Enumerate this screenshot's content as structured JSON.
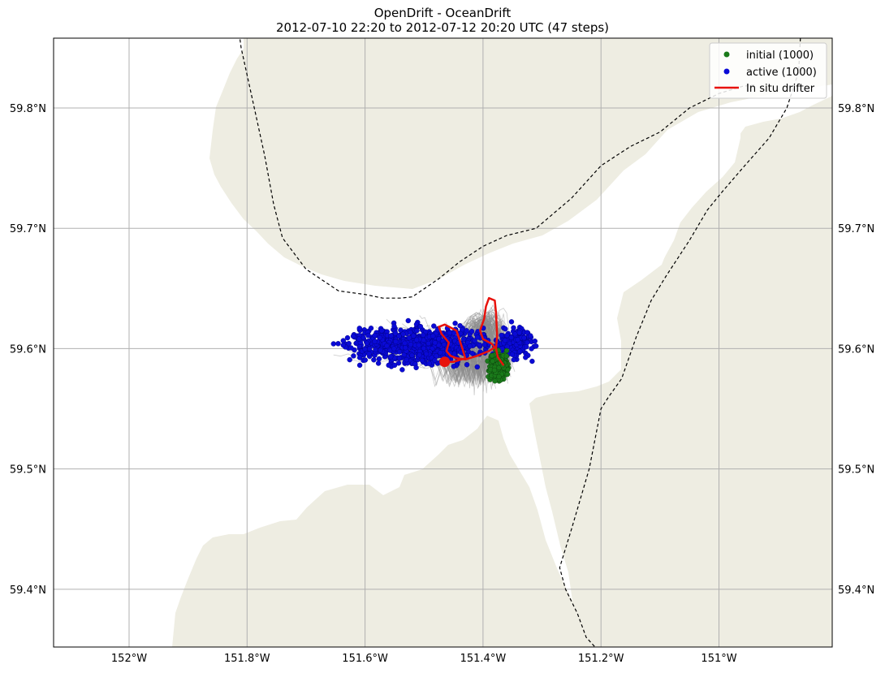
{
  "chart_data": {
    "type": "scatter",
    "title": "OpenDrift - OceanDrift",
    "subtitle": "2012-07-10 22:20 to 2012-07-12 20:20 UTC (47 steps)",
    "xlim": [
      -152.128,
      -150.808
    ],
    "ylim": [
      59.352,
      59.858
    ],
    "x_ticks": [
      {
        "value": -152.0,
        "label": "152°W"
      },
      {
        "value": -151.8,
        "label": "151.8°W"
      },
      {
        "value": -151.6,
        "label": "151.6°W"
      },
      {
        "value": -151.4,
        "label": "151.4°W"
      },
      {
        "value": -151.2,
        "label": "151.2°W"
      },
      {
        "value": -151.0,
        "label": "151°W"
      }
    ],
    "y_ticks": [
      {
        "value": 59.4,
        "label": "59.4°N"
      },
      {
        "value": 59.5,
        "label": "59.5°N"
      },
      {
        "value": 59.6,
        "label": "59.6°N"
      },
      {
        "value": 59.7,
        "label": "59.7°N"
      },
      {
        "value": 59.8,
        "label": "59.8°N"
      }
    ],
    "grid": true,
    "legend_position": "top-right",
    "legend": [
      {
        "label": "initial (1000)",
        "marker": "dot",
        "color": "#1a7a1a"
      },
      {
        "label": "active (1000)",
        "marker": "dot",
        "color": "#0a0ad6"
      },
      {
        "label": "In situ drifter",
        "marker": "line",
        "color": "#e8120c"
      }
    ],
    "colors": {
      "land": "#eeede2",
      "water": "#ffffff",
      "grid": "#b0b0b0",
      "trajectory": "#8c8c8c",
      "initial": "#1a7a1a",
      "active": "#0a0ad6",
      "drifter": "#e8120c",
      "boundary": "#000000"
    },
    "series": [
      {
        "name": "initial (1000)",
        "kind": "cluster",
        "center": {
          "x": -151.373,
          "y": 59.585
        },
        "spread": {
          "x": 0.012,
          "y": 0.009
        },
        "count": 1000
      },
      {
        "name": "active (1000)",
        "kind": "cluster",
        "center": {
          "x": -151.505,
          "y": 59.603
        },
        "spread": {
          "x": 0.095,
          "y": 0.013
        },
        "count": 1000
      },
      {
        "name": "In situ drifter",
        "kind": "line",
        "x": [
          -151.365,
          -151.375,
          -151.378,
          -151.376,
          -151.377,
          -151.378,
          -151.38,
          -151.39,
          -151.395,
          -151.398,
          -151.405,
          -151.4,
          -151.385,
          -151.38,
          -151.39,
          -151.41,
          -151.43,
          -151.445,
          -151.455,
          -151.462,
          -151.458,
          -151.47,
          -151.475,
          -151.465,
          -151.445,
          -151.435,
          -151.43,
          -151.45,
          -151.465
        ],
        "y": [
          59.586,
          59.593,
          59.6,
          59.61,
          59.62,
          59.63,
          59.64,
          59.642,
          59.635,
          59.625,
          59.615,
          59.608,
          59.604,
          59.601,
          59.598,
          59.594,
          59.591,
          59.592,
          59.594,
          59.598,
          59.605,
          59.612,
          59.618,
          59.62,
          59.615,
          59.6,
          59.592,
          59.589,
          59.589
        ]
      }
    ],
    "drifter_end": {
      "x": -151.465,
      "y": 59.589
    },
    "boundaries": [
      {
        "name": "west-boundary",
        "x": [
          -151.812,
          -151.81,
          -151.79,
          -151.77,
          -151.755,
          -151.74,
          -151.7,
          -151.645,
          -151.6,
          -151.57,
          -151.54,
          -151.52,
          -151.475,
          -151.44,
          -151.4,
          -151.36,
          -151.31,
          -151.25,
          -151.2,
          -151.15,
          -151.1,
          -151.05,
          -151.0,
          -150.96,
          -150.94
        ],
        "y": [
          59.857,
          59.85,
          59.805,
          59.76,
          59.72,
          59.692,
          59.666,
          59.648,
          59.645,
          59.642,
          59.642,
          59.643,
          59.658,
          59.672,
          59.685,
          59.694,
          59.7,
          59.725,
          59.752,
          59.768,
          59.78,
          59.8,
          59.812,
          59.818,
          59.819
        ]
      },
      {
        "name": "east-boundary",
        "x": [
          -150.862,
          -150.865,
          -150.885,
          -150.915,
          -150.96,
          -150.995,
          -151.02,
          -151.05,
          -151.09,
          -151.115,
          -151.14,
          -151.165,
          -151.187,
          -151.2,
          -151.22,
          -151.25,
          -151.27,
          -151.26,
          -151.24,
          -151.225,
          -151.21
        ],
        "y": [
          59.858,
          59.83,
          59.8,
          59.775,
          59.75,
          59.73,
          59.715,
          59.69,
          59.66,
          59.64,
          59.61,
          59.575,
          59.56,
          59.55,
          59.5,
          59.45,
          59.418,
          59.4,
          59.38,
          59.36,
          59.352
        ]
      }
    ]
  }
}
